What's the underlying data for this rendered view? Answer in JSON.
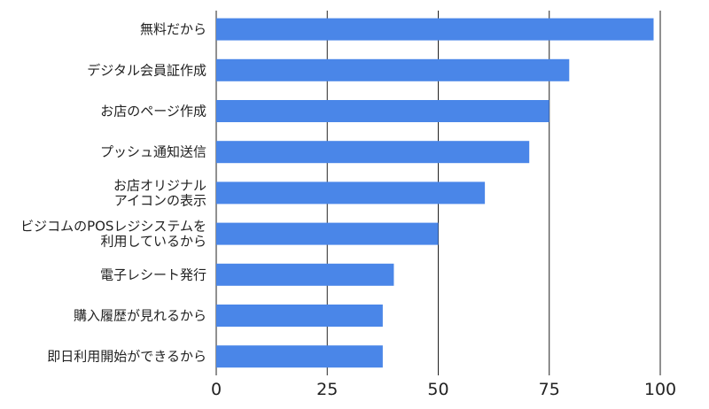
{
  "chart_data": {
    "type": "bar",
    "orientation": "horizontal",
    "categories": [
      [
        "無料だから"
      ],
      [
        "デジタル会員証作成"
      ],
      [
        "お店のページ作成"
      ],
      [
        "プッシュ通知送信"
      ],
      [
        "お店オリジナル",
        "アイコンの表示"
      ],
      [
        "ビジコムのPOSレジシステムを",
        "利用しているから"
      ],
      [
        "電子レシート発行"
      ],
      [
        "購入履歴が見れるから"
      ],
      [
        "即日利用開始ができるから"
      ]
    ],
    "values": [
      98.5,
      79.5,
      75,
      70.5,
      60.5,
      50,
      40,
      37.5,
      37.5
    ],
    "xlim": [
      0,
      100
    ],
    "ticks": [
      0,
      25,
      50,
      75,
      100
    ],
    "title": "",
    "xlabel": "",
    "ylabel": "",
    "grid": true,
    "bar_color": "#4a86e8",
    "grid_color": "#222222"
  }
}
